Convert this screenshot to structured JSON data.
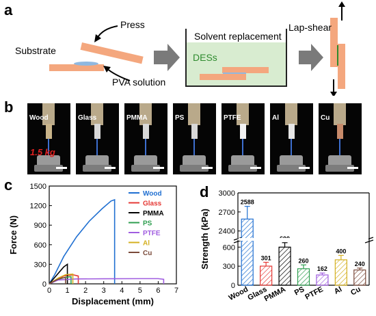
{
  "panels": {
    "a": {
      "label": "a",
      "text_substrate": "Substrate",
      "text_press": "Press",
      "text_pva": "PVA solution",
      "text_solvent": "Solvent replacement",
      "text_des": "DESs",
      "text_lapshear": "Lap-shear"
    },
    "b": {
      "label": "b",
      "photos": [
        "Wood",
        "Glass",
        "PMMA",
        "PS",
        "PTFE",
        "Al",
        "Cu"
      ],
      "mass_label": "1.5 kg"
    },
    "c": {
      "label": "c"
    },
    "d": {
      "label": "d"
    }
  },
  "chart_data": [
    {
      "type": "line",
      "xlabel": "Displacement (mm)",
      "ylabel": "Force (N)",
      "xlim": [
        0,
        7
      ],
      "ylim": [
        0,
        1500
      ],
      "xticks": [
        "0",
        "1",
        "2",
        "3",
        "4",
        "5",
        "6",
        "7"
      ],
      "yticks": [
        "0",
        "300",
        "600",
        "900",
        "1200",
        "1500"
      ],
      "legend": "top-right",
      "series": [
        {
          "name": "Wood",
          "color": "#1f6fd1",
          "x": [
            0,
            0.3,
            0.8,
            1.5,
            2.2,
            2.9,
            3.4,
            3.6,
            3.6
          ],
          "y": [
            0,
            140,
            420,
            720,
            960,
            1150,
            1270,
            1290,
            0
          ]
        },
        {
          "name": "Glass",
          "color": "#e53935",
          "x": [
            0,
            0.4,
            0.8,
            1.3,
            1.6,
            1.6
          ],
          "y": [
            0,
            60,
            120,
            140,
            120,
            0
          ]
        },
        {
          "name": "PMMA",
          "color": "#000000",
          "x": [
            0,
            0.4,
            0.8,
            1.0,
            1.0
          ],
          "y": [
            0,
            130,
            260,
            300,
            0
          ]
        },
        {
          "name": "PS",
          "color": "#2e9e4f",
          "x": [
            0,
            0.5,
            0.9,
            1.2,
            1.2
          ],
          "y": [
            0,
            70,
            100,
            110,
            0
          ]
        },
        {
          "name": "PTFE",
          "color": "#a05de0",
          "x": [
            0,
            0.5,
            1.5,
            3.0,
            5.0,
            6.0,
            6.3,
            6.3
          ],
          "y": [
            0,
            60,
            75,
            78,
            80,
            80,
            70,
            0
          ]
        },
        {
          "name": "Al",
          "color": "#d4b020",
          "x": [
            0,
            0.5,
            0.9,
            1.3,
            1.3
          ],
          "y": [
            0,
            90,
            140,
            150,
            0
          ]
        },
        {
          "name": "Cu",
          "color": "#7a4a3a",
          "x": [
            0,
            0.4,
            0.7,
            0.9,
            0.9
          ],
          "y": [
            0,
            60,
            90,
            95,
            0
          ]
        }
      ]
    },
    {
      "type": "bar",
      "ylabel": "Strength (kPa)",
      "categories": [
        "Wood",
        "Glass",
        "PMMA",
        "PS",
        "PTFE",
        "Al",
        "Cu"
      ],
      "values": [
        2588,
        301,
        600,
        260,
        162,
        400,
        240
      ],
      "value_labels": [
        "2588",
        "301",
        "600",
        "260",
        "162",
        "400",
        "240"
      ],
      "errors": [
        200,
        60,
        70,
        60,
        30,
        70,
        30
      ],
      "colors": [
        "#1f6fd1",
        "#e53935",
        "#000000",
        "#2e9e4f",
        "#a05de0",
        "#d4b020",
        "#7a4a3a"
      ],
      "yticks_lower": [
        "0",
        "300",
        "600"
      ],
      "yticks_upper": [
        "2400",
        "2700",
        "3000"
      ],
      "broken_axis": true,
      "lower_range": [
        0,
        700
      ],
      "upper_range": [
        2300,
        3000
      ]
    }
  ]
}
